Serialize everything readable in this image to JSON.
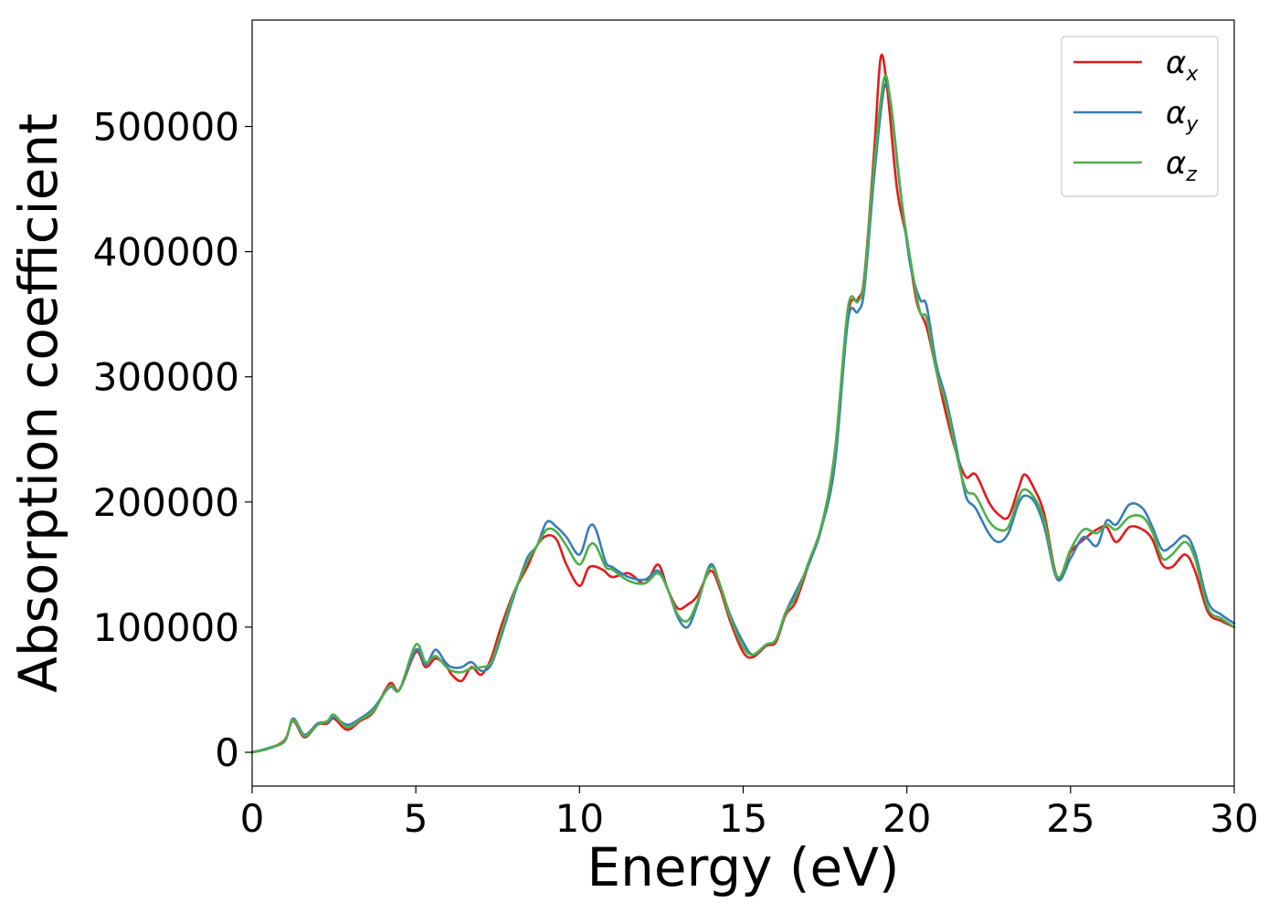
{
  "chart_data": {
    "type": "line",
    "title": "",
    "xlabel": "Energy (eV)",
    "ylabel": "Absorption coefficient",
    "xlim": [
      0,
      30
    ],
    "ylim": [
      -27000,
      585000
    ],
    "xticks": [
      0,
      5,
      10,
      15,
      20,
      25,
      30
    ],
    "xtick_labels": [
      "0",
      "5",
      "10",
      "15",
      "20",
      "25",
      "30"
    ],
    "yticks": [
      0,
      100000,
      200000,
      300000,
      400000,
      500000
    ],
    "ytick_labels": [
      "0",
      "100000",
      "200000",
      "300000",
      "400000",
      "500000"
    ],
    "grid": false,
    "legend_position": "top-right",
    "series": [
      {
        "name": "α_x",
        "legend_base": "α",
        "legend_sub": "x",
        "color": "#e41a1c",
        "points": [
          [
            0,
            0
          ],
          [
            0.5,
            3000
          ],
          [
            1.0,
            10000
          ],
          [
            1.25,
            25000
          ],
          [
            1.6,
            12000
          ],
          [
            2.0,
            22000
          ],
          [
            2.3,
            23000
          ],
          [
            2.5,
            27000
          ],
          [
            2.9,
            18000
          ],
          [
            3.3,
            25000
          ],
          [
            3.7,
            32000
          ],
          [
            4.2,
            55000
          ],
          [
            4.5,
            50000
          ],
          [
            5.0,
            80000
          ],
          [
            5.3,
            68000
          ],
          [
            5.6,
            75000
          ],
          [
            5.9,
            70000
          ],
          [
            6.1,
            62000
          ],
          [
            6.4,
            57000
          ],
          [
            6.7,
            68000
          ],
          [
            7.0,
            62000
          ],
          [
            7.3,
            75000
          ],
          [
            7.6,
            100000
          ],
          [
            8.0,
            128000
          ],
          [
            8.4,
            148000
          ],
          [
            8.7,
            165000
          ],
          [
            9.0,
            173000
          ],
          [
            9.3,
            170000
          ],
          [
            9.6,
            150000
          ],
          [
            10.0,
            133000
          ],
          [
            10.3,
            148000
          ],
          [
            10.7,
            146000
          ],
          [
            11.0,
            140000
          ],
          [
            11.5,
            143000
          ],
          [
            12.0,
            135000
          ],
          [
            12.4,
            150000
          ],
          [
            12.7,
            130000
          ],
          [
            13.0,
            115000
          ],
          [
            13.3,
            118000
          ],
          [
            13.6,
            125000
          ],
          [
            14.0,
            145000
          ],
          [
            14.3,
            130000
          ],
          [
            14.6,
            105000
          ],
          [
            15.0,
            80000
          ],
          [
            15.3,
            76000
          ],
          [
            15.7,
            85000
          ],
          [
            16.0,
            88000
          ],
          [
            16.3,
            110000
          ],
          [
            16.6,
            120000
          ],
          [
            17.0,
            150000
          ],
          [
            17.4,
            180000
          ],
          [
            17.8,
            240000
          ],
          [
            18.2,
            350000
          ],
          [
            18.5,
            362000
          ],
          [
            18.7,
            380000
          ],
          [
            19.0,
            480000
          ],
          [
            19.2,
            555000
          ],
          [
            19.4,
            530000
          ],
          [
            19.7,
            450000
          ],
          [
            20.0,
            410000
          ],
          [
            20.3,
            360000
          ],
          [
            20.6,
            340000
          ],
          [
            20.9,
            305000
          ],
          [
            21.2,
            270000
          ],
          [
            21.5,
            240000
          ],
          [
            21.8,
            220000
          ],
          [
            22.1,
            222000
          ],
          [
            22.5,
            200000
          ],
          [
            22.8,
            190000
          ],
          [
            23.1,
            188000
          ],
          [
            23.4,
            210000
          ],
          [
            23.6,
            222000
          ],
          [
            23.9,
            210000
          ],
          [
            24.2,
            190000
          ],
          [
            24.6,
            140000
          ],
          [
            25.0,
            160000
          ],
          [
            25.4,
            170000
          ],
          [
            25.8,
            178000
          ],
          [
            26.1,
            180000
          ],
          [
            26.4,
            168000
          ],
          [
            26.8,
            180000
          ],
          [
            27.2,
            178000
          ],
          [
            27.5,
            170000
          ],
          [
            27.8,
            150000
          ],
          [
            28.1,
            148000
          ],
          [
            28.5,
            158000
          ],
          [
            28.8,
            145000
          ],
          [
            29.2,
            112000
          ],
          [
            29.6,
            105000
          ],
          [
            30.0,
            100000
          ]
        ]
      },
      {
        "name": "α_y",
        "legend_base": "α",
        "legend_sub": "y",
        "color": "#377eb8",
        "points": [
          [
            0,
            0
          ],
          [
            0.5,
            3500
          ],
          [
            1.0,
            9000
          ],
          [
            1.25,
            27000
          ],
          [
            1.6,
            14000
          ],
          [
            2.0,
            23000
          ],
          [
            2.3,
            24000
          ],
          [
            2.5,
            28000
          ],
          [
            2.9,
            22000
          ],
          [
            3.3,
            27000
          ],
          [
            3.7,
            35000
          ],
          [
            4.2,
            52000
          ],
          [
            4.5,
            50000
          ],
          [
            5.0,
            82000
          ],
          [
            5.3,
            70000
          ],
          [
            5.6,
            82000
          ],
          [
            5.9,
            72000
          ],
          [
            6.1,
            68000
          ],
          [
            6.4,
            68000
          ],
          [
            6.7,
            72000
          ],
          [
            7.0,
            65000
          ],
          [
            7.3,
            70000
          ],
          [
            7.6,
            92000
          ],
          [
            8.0,
            125000
          ],
          [
            8.4,
            155000
          ],
          [
            8.7,
            165000
          ],
          [
            9.0,
            184000
          ],
          [
            9.3,
            180000
          ],
          [
            9.6,
            172000
          ],
          [
            10.0,
            158000
          ],
          [
            10.3,
            180000
          ],
          [
            10.5,
            178000
          ],
          [
            10.8,
            152000
          ],
          [
            11.0,
            148000
          ],
          [
            11.5,
            140000
          ],
          [
            12.0,
            138000
          ],
          [
            12.4,
            145000
          ],
          [
            12.7,
            130000
          ],
          [
            13.0,
            108000
          ],
          [
            13.3,
            100000
          ],
          [
            13.6,
            118000
          ],
          [
            14.0,
            150000
          ],
          [
            14.3,
            133000
          ],
          [
            14.6,
            110000
          ],
          [
            15.0,
            88000
          ],
          [
            15.3,
            78000
          ],
          [
            15.7,
            86000
          ],
          [
            16.0,
            90000
          ],
          [
            16.3,
            112000
          ],
          [
            16.6,
            128000
          ],
          [
            17.0,
            150000
          ],
          [
            17.4,
            180000
          ],
          [
            17.8,
            230000
          ],
          [
            18.2,
            345000
          ],
          [
            18.5,
            352000
          ],
          [
            18.7,
            370000
          ],
          [
            19.0,
            460000
          ],
          [
            19.3,
            530000
          ],
          [
            19.5,
            520000
          ],
          [
            19.8,
            450000
          ],
          [
            20.1,
            390000
          ],
          [
            20.4,
            362000
          ],
          [
            20.6,
            357000
          ],
          [
            20.9,
            310000
          ],
          [
            21.2,
            282000
          ],
          [
            21.5,
            245000
          ],
          [
            21.8,
            205000
          ],
          [
            22.1,
            195000
          ],
          [
            22.5,
            175000
          ],
          [
            22.8,
            168000
          ],
          [
            23.1,
            175000
          ],
          [
            23.4,
            198000
          ],
          [
            23.6,
            205000
          ],
          [
            23.9,
            200000
          ],
          [
            24.2,
            180000
          ],
          [
            24.6,
            138000
          ],
          [
            25.0,
            155000
          ],
          [
            25.4,
            172000
          ],
          [
            25.8,
            165000
          ],
          [
            26.1,
            185000
          ],
          [
            26.4,
            182000
          ],
          [
            26.8,
            198000
          ],
          [
            27.2,
            195000
          ],
          [
            27.5,
            180000
          ],
          [
            27.8,
            162000
          ],
          [
            28.1,
            165000
          ],
          [
            28.5,
            173000
          ],
          [
            28.8,
            160000
          ],
          [
            29.2,
            120000
          ],
          [
            29.6,
            110000
          ],
          [
            30.0,
            103000
          ]
        ]
      },
      {
        "name": "α_z",
        "legend_base": "α",
        "legend_sub": "z",
        "color": "#4daf4a",
        "points": [
          [
            0,
            0
          ],
          [
            0.5,
            3000
          ],
          [
            1.0,
            9500
          ],
          [
            1.25,
            26000
          ],
          [
            1.6,
            13000
          ],
          [
            2.0,
            22000
          ],
          [
            2.3,
            25000
          ],
          [
            2.5,
            30000
          ],
          [
            2.9,
            20000
          ],
          [
            3.3,
            26000
          ],
          [
            3.7,
            33000
          ],
          [
            4.2,
            53000
          ],
          [
            4.5,
            50000
          ],
          [
            5.0,
            86000
          ],
          [
            5.3,
            72000
          ],
          [
            5.6,
            77000
          ],
          [
            5.9,
            69000
          ],
          [
            6.1,
            65000
          ],
          [
            6.4,
            64000
          ],
          [
            6.7,
            67000
          ],
          [
            7.0,
            68000
          ],
          [
            7.3,
            72000
          ],
          [
            7.6,
            95000
          ],
          [
            8.0,
            127000
          ],
          [
            8.4,
            152000
          ],
          [
            8.7,
            165000
          ],
          [
            9.0,
            178000
          ],
          [
            9.3,
            176000
          ],
          [
            9.6,
            165000
          ],
          [
            10.0,
            150000
          ],
          [
            10.3,
            165000
          ],
          [
            10.5,
            165000
          ],
          [
            10.8,
            148000
          ],
          [
            11.0,
            146000
          ],
          [
            11.5,
            137000
          ],
          [
            12.0,
            135000
          ],
          [
            12.4,
            143000
          ],
          [
            12.7,
            130000
          ],
          [
            13.0,
            110000
          ],
          [
            13.3,
            105000
          ],
          [
            13.6,
            120000
          ],
          [
            14.0,
            148000
          ],
          [
            14.3,
            133000
          ],
          [
            14.6,
            108000
          ],
          [
            15.0,
            84000
          ],
          [
            15.3,
            78000
          ],
          [
            15.7,
            86000
          ],
          [
            16.0,
            90000
          ],
          [
            16.3,
            112000
          ],
          [
            16.6,
            124000
          ],
          [
            17.0,
            152000
          ],
          [
            17.4,
            182000
          ],
          [
            17.8,
            240000
          ],
          [
            18.2,
            355000
          ],
          [
            18.5,
            360000
          ],
          [
            18.7,
            378000
          ],
          [
            19.0,
            470000
          ],
          [
            19.3,
            538000
          ],
          [
            19.5,
            520000
          ],
          [
            19.8,
            448000
          ],
          [
            20.1,
            395000
          ],
          [
            20.4,
            352000
          ],
          [
            20.6,
            347000
          ],
          [
            20.9,
            305000
          ],
          [
            21.2,
            278000
          ],
          [
            21.5,
            240000
          ],
          [
            21.8,
            210000
          ],
          [
            22.1,
            205000
          ],
          [
            22.5,
            185000
          ],
          [
            22.8,
            178000
          ],
          [
            23.1,
            180000
          ],
          [
            23.4,
            203000
          ],
          [
            23.6,
            210000
          ],
          [
            23.9,
            203000
          ],
          [
            24.2,
            185000
          ],
          [
            24.6,
            140000
          ],
          [
            25.0,
            162000
          ],
          [
            25.4,
            178000
          ],
          [
            25.8,
            175000
          ],
          [
            26.1,
            182000
          ],
          [
            26.4,
            178000
          ],
          [
            26.8,
            188000
          ],
          [
            27.2,
            188000
          ],
          [
            27.5,
            176000
          ],
          [
            27.8,
            155000
          ],
          [
            28.1,
            158000
          ],
          [
            28.5,
            168000
          ],
          [
            28.8,
            155000
          ],
          [
            29.2,
            115000
          ],
          [
            29.6,
            107000
          ],
          [
            30.0,
            100000
          ]
        ]
      }
    ]
  }
}
